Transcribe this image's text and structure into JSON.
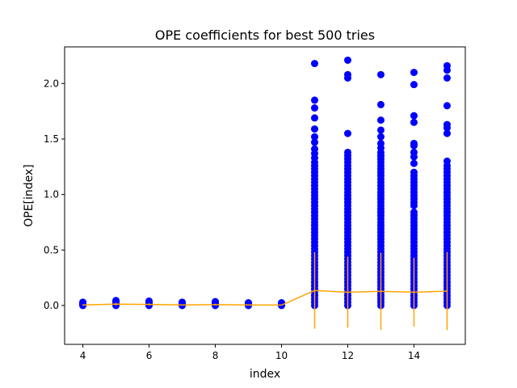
{
  "chart_data": {
    "type": "scatter",
    "title": "OPE coefficients for best 500 tries",
    "xlabel": "index",
    "ylabel": "OPE[index]",
    "xlim": [
      3.45,
      15.55
    ],
    "ylim": [
      -0.35,
      2.33
    ],
    "xticks": [
      4,
      6,
      8,
      10,
      12,
      14
    ],
    "xtick_labels": [
      "4",
      "6",
      "8",
      "10",
      "12",
      "14"
    ],
    "yticks": [
      0.0,
      0.5,
      1.0,
      1.5,
      2.0
    ],
    "ytick_labels": [
      "0.0",
      "0.5",
      "1.0",
      "1.5",
      "2.0"
    ],
    "grid": false,
    "series": [
      {
        "kind": "scatter",
        "color": "#0000ff",
        "points": [
          {
            "x": 4,
            "values": [
              0.0,
              0.005,
              0.01,
              0.015,
              0.02,
              0.025,
              0.03
            ]
          },
          {
            "x": 5,
            "values": [
              0.0,
              0.005,
              0.01,
              0.015,
              0.02,
              0.025,
              0.03,
              0.035,
              0.04,
              0.045
            ]
          },
          {
            "x": 6,
            "values": [
              0.0,
              0.005,
              0.01,
              0.015,
              0.02,
              0.025,
              0.03,
              0.035,
              0.04
            ]
          },
          {
            "x": 7,
            "values": [
              0.0,
              0.005,
              0.01,
              0.015,
              0.02,
              0.025,
              0.03
            ]
          },
          {
            "x": 8,
            "values": [
              0.0,
              0.005,
              0.01,
              0.015,
              0.02,
              0.025,
              0.03,
              0.035
            ]
          },
          {
            "x": 9,
            "values": [
              0.0,
              0.005,
              0.01,
              0.015,
              0.02,
              0.025
            ]
          },
          {
            "x": 10,
            "values": [
              0.0,
              0.005,
              0.01,
              0.015,
              0.02,
              0.025
            ]
          },
          {
            "x": 11,
            "values": [
              0.0,
              0.03,
              0.06,
              0.09,
              0.12,
              0.15,
              0.18,
              0.21,
              0.24,
              0.27,
              0.3,
              0.33,
              0.36,
              0.39,
              0.42,
              0.45,
              0.48,
              0.51,
              0.54,
              0.57,
              0.6,
              0.63,
              0.66,
              0.69,
              0.72,
              0.75,
              0.78,
              0.81,
              0.84,
              0.87,
              0.9,
              0.93,
              0.96,
              0.99,
              1.02,
              1.05,
              1.08,
              1.11,
              1.14,
              1.17,
              1.2,
              1.23,
              1.26,
              1.29,
              1.33,
              1.37,
              1.41,
              1.47,
              1.52,
              1.59,
              1.69,
              1.78,
              1.85,
              2.18
            ]
          },
          {
            "x": 12,
            "values": [
              0.0,
              0.03,
              0.06,
              0.09,
              0.12,
              0.15,
              0.18,
              0.21,
              0.24,
              0.27,
              0.3,
              0.33,
              0.36,
              0.39,
              0.42,
              0.45,
              0.48,
              0.51,
              0.54,
              0.57,
              0.6,
              0.63,
              0.66,
              0.69,
              0.72,
              0.75,
              0.78,
              0.81,
              0.84,
              0.87,
              0.9,
              0.93,
              0.96,
              0.99,
              1.02,
              1.05,
              1.08,
              1.11,
              1.14,
              1.17,
              1.2,
              1.23,
              1.26,
              1.29,
              1.32,
              1.35,
              1.38,
              1.55,
              2.05,
              2.08,
              2.21
            ]
          },
          {
            "x": 13,
            "values": [
              0.0,
              0.03,
              0.06,
              0.09,
              0.12,
              0.15,
              0.18,
              0.21,
              0.24,
              0.27,
              0.3,
              0.33,
              0.36,
              0.39,
              0.42,
              0.45,
              0.48,
              0.51,
              0.54,
              0.57,
              0.6,
              0.63,
              0.66,
              0.69,
              0.72,
              0.75,
              0.78,
              0.81,
              0.84,
              0.87,
              0.9,
              0.93,
              0.96,
              0.99,
              1.02,
              1.05,
              1.08,
              1.11,
              1.14,
              1.17,
              1.2,
              1.23,
              1.26,
              1.29,
              1.32,
              1.35,
              1.38,
              1.42,
              1.46,
              1.52,
              1.58,
              1.67,
              1.81,
              2.08
            ]
          },
          {
            "x": 14,
            "values": [
              0.0,
              0.03,
              0.06,
              0.09,
              0.12,
              0.15,
              0.18,
              0.21,
              0.24,
              0.27,
              0.3,
              0.33,
              0.36,
              0.39,
              0.42,
              0.45,
              0.48,
              0.51,
              0.54,
              0.57,
              0.6,
              0.63,
              0.66,
              0.69,
              0.72,
              0.75,
              0.78,
              0.81,
              0.84,
              0.9,
              0.93,
              0.96,
              0.99,
              1.02,
              1.05,
              1.08,
              1.11,
              1.14,
              1.17,
              1.2,
              1.28,
              1.34,
              1.38,
              1.44,
              1.46,
              1.65,
              1.71,
              1.99,
              2.1
            ]
          },
          {
            "x": 15,
            "values": [
              0.0,
              0.03,
              0.06,
              0.09,
              0.12,
              0.15,
              0.18,
              0.21,
              0.24,
              0.27,
              0.3,
              0.33,
              0.36,
              0.39,
              0.42,
              0.45,
              0.48,
              0.51,
              0.54,
              0.57,
              0.6,
              0.63,
              0.66,
              0.69,
              0.72,
              0.75,
              0.78,
              0.81,
              0.84,
              0.87,
              0.9,
              0.93,
              0.96,
              0.99,
              1.02,
              1.05,
              1.08,
              1.11,
              1.14,
              1.17,
              1.2,
              1.23,
              1.26,
              1.3,
              1.55,
              1.6,
              1.63,
              1.8,
              2.05,
              2.12,
              2.16
            ]
          }
        ]
      },
      {
        "kind": "errorbar",
        "color": "#ffa500",
        "x": [
          4,
          5,
          6,
          7,
          8,
          9,
          10,
          11,
          12,
          13,
          14,
          15
        ],
        "mean": [
          0.005,
          0.012,
          0.01,
          0.005,
          0.008,
          0.005,
          0.004,
          0.135,
          0.12,
          0.128,
          0.12,
          0.13
        ],
        "err_low": [
          0.005,
          0.012,
          0.01,
          0.005,
          0.008,
          0.005,
          0.004,
          0.345,
          0.32,
          0.348,
          0.31,
          0.352
        ],
        "err_high": [
          0.005,
          0.012,
          0.01,
          0.005,
          0.008,
          0.005,
          0.004,
          0.345,
          0.32,
          0.348,
          0.31,
          0.352
        ]
      }
    ]
  }
}
